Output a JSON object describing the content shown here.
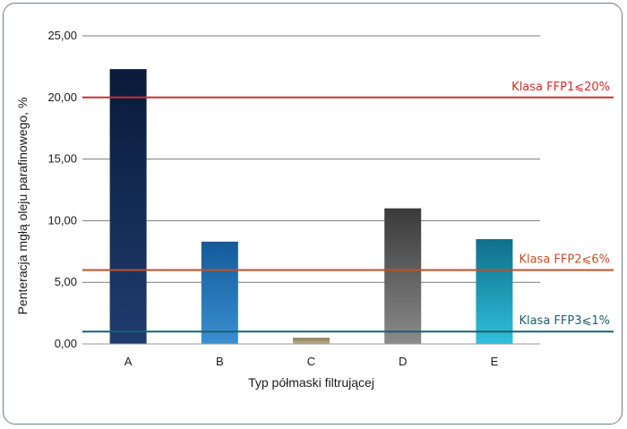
{
  "chart_data": {
    "type": "bar",
    "categories": [
      "A",
      "B",
      "C",
      "D",
      "E"
    ],
    "values": [
      22.3,
      8.3,
      0.5,
      11.0,
      8.5
    ],
    "bar_colors": [
      [
        "#0a1a3a",
        "#1e3d6e"
      ],
      [
        "#145a9a",
        "#3a8fd0"
      ],
      [
        "#8a7a58",
        "#c2b08a"
      ],
      [
        "#3a3a3a",
        "#8a8a8a"
      ],
      [
        "#0f6f8a",
        "#2ec0dc"
      ]
    ],
    "xlabel": "Typ półmaski filtrującej",
    "ylabel": "Penteracja mgłą oleju parafinowego, %",
    "ylim": [
      0,
      25
    ],
    "yticks": [
      "0,00",
      "5,00",
      "10,00",
      "15,00",
      "20,00",
      "25,00"
    ],
    "ytick_values": [
      0,
      5,
      10,
      15,
      20,
      25
    ],
    "grid": true,
    "reference_lines": [
      {
        "label": "Klasa FFP1⩽20%",
        "value": 20,
        "color": "#d42a2a"
      },
      {
        "label": "Klasa FFP2⩽6%",
        "value": 6,
        "color": "#c0502a"
      },
      {
        "label": "Klasa FFP3⩽1%",
        "value": 1,
        "color": "#1e5f6e"
      }
    ]
  }
}
